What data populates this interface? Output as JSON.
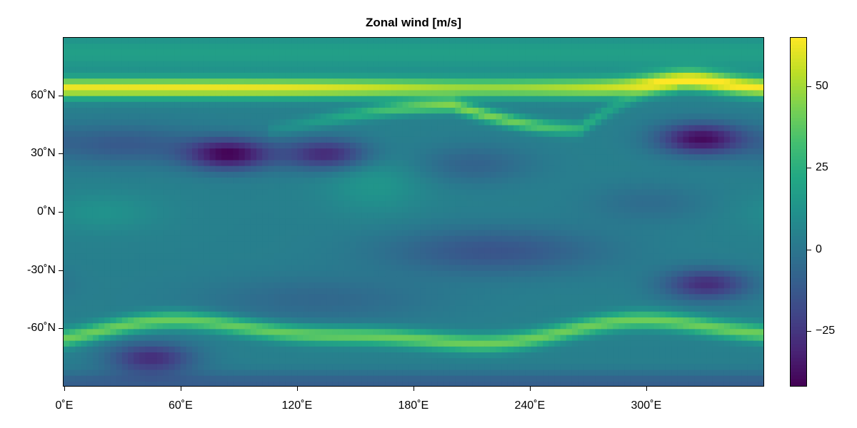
{
  "chart_data": {
    "type": "heatmap",
    "title": "Zonal wind [m/s]",
    "xlabel": "",
    "ylabel": "",
    "x_range": [
      0,
      360
    ],
    "y_range": [
      -90,
      90
    ],
    "x_ticks": [
      {
        "value": 0,
        "label": "0˚E"
      },
      {
        "value": 60,
        "label": "60˚E"
      },
      {
        "value": 120,
        "label": "120˚E"
      },
      {
        "value": 180,
        "label": "180˚E"
      },
      {
        "value": 240,
        "label": "240˚E"
      },
      {
        "value": 300,
        "label": "300˚E"
      }
    ],
    "y_ticks": [
      {
        "value": 60,
        "label": "60˚N"
      },
      {
        "value": 30,
        "label": "30˚N"
      },
      {
        "value": 0,
        "label": "0˚N"
      },
      {
        "value": -30,
        "label": "-30˚N"
      },
      {
        "value": -60,
        "label": "-60˚N"
      }
    ],
    "colormap": "viridis",
    "colorbar": {
      "range": [
        -42,
        65
      ],
      "ticks": [
        {
          "value": 50,
          "label": "50"
        },
        {
          "value": 25,
          "label": "25"
        },
        {
          "value": 0,
          "label": "0"
        },
        {
          "value": -25,
          "label": "−25"
        }
      ]
    },
    "features": {
      "northern_jet_lat": 64,
      "northern_jet_peak": 62,
      "secondary_jet_peak": 50,
      "southern_jet_lat": -62,
      "southern_jet_peak": 45,
      "min_value": -42,
      "lows": [
        {
          "lon": 85,
          "lat": 30,
          "value": -40
        },
        {
          "lon": 327,
          "lat": 38,
          "value": -38
        },
        {
          "lon": 330,
          "lat": -37,
          "value": -28
        },
        {
          "lon": 45,
          "lat": -75,
          "value": -28
        },
        {
          "lon": 135,
          "lat": 30,
          "value": -30
        }
      ]
    }
  }
}
